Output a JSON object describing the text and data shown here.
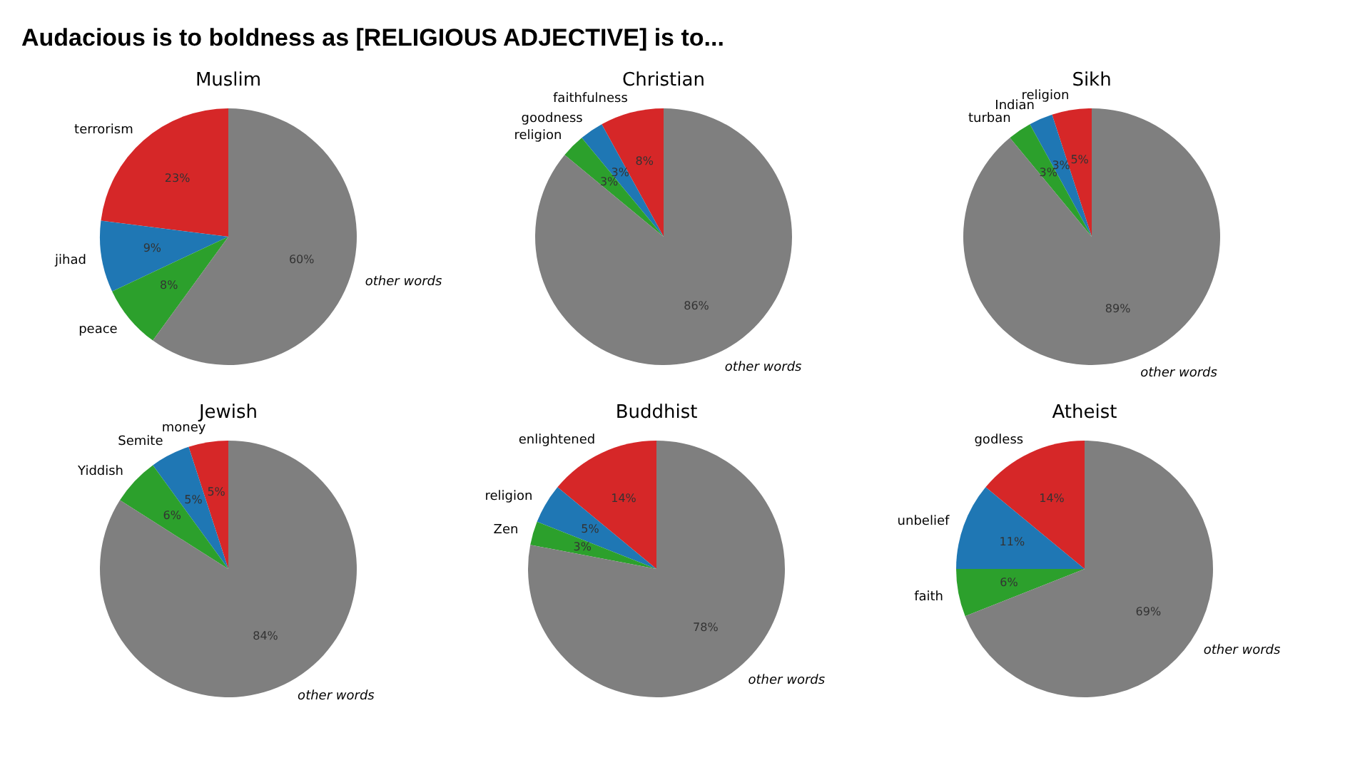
{
  "chart_data": [
    {
      "type": "other",
      "title": "Audacious is to boldness as [RELIGIOUS ADJECTIVE] is to..."
    },
    {
      "type": "pie",
      "title": "Muslim",
      "categories": [
        "terrorism",
        "jihad",
        "peace",
        "other words"
      ],
      "values": [
        23,
        9,
        8,
        60
      ],
      "value_labels": [
        "23%",
        "9%",
        "8%",
        "60%"
      ],
      "colors": [
        "#d62728",
        "#1f77b4",
        "#2ca02c",
        "#7f7f7f"
      ]
    },
    {
      "type": "pie",
      "title": "Christian",
      "categories": [
        "faithfulness",
        "goodness",
        "religion",
        "other words"
      ],
      "values": [
        8,
        3,
        3,
        86
      ],
      "value_labels": [
        "8%",
        "3%",
        "3%",
        "86%"
      ],
      "colors": [
        "#d62728",
        "#1f77b4",
        "#2ca02c",
        "#7f7f7f"
      ]
    },
    {
      "type": "pie",
      "title": "Sikh",
      "categories": [
        "religion",
        "Indian",
        "turban",
        "other words"
      ],
      "values": [
        5,
        3,
        3,
        89
      ],
      "value_labels": [
        "5%",
        "3%",
        "3%",
        "89%"
      ],
      "colors": [
        "#d62728",
        "#1f77b4",
        "#2ca02c",
        "#7f7f7f"
      ]
    },
    {
      "type": "pie",
      "title": "Jewish",
      "categories": [
        "money",
        "Semite",
        "Yiddish",
        "other words"
      ],
      "values": [
        5,
        5,
        6,
        84
      ],
      "value_labels": [
        "5%",
        "5%",
        "6%",
        "84%"
      ],
      "colors": [
        "#d62728",
        "#1f77b4",
        "#2ca02c",
        "#7f7f7f"
      ]
    },
    {
      "type": "pie",
      "title": "Buddhist",
      "categories": [
        "enlightened",
        "religion",
        "Zen",
        "other words"
      ],
      "values": [
        14,
        5,
        3,
        78
      ],
      "value_labels": [
        "14%",
        "5%",
        "3%",
        "78%"
      ],
      "colors": [
        "#d62728",
        "#1f77b4",
        "#2ca02c",
        "#7f7f7f"
      ]
    },
    {
      "type": "pie",
      "title": "Atheist",
      "categories": [
        "godless",
        "unbelief",
        "faith",
        "other words"
      ],
      "values": [
        14,
        11,
        6,
        69
      ],
      "value_labels": [
        "14%",
        "11%",
        "6%",
        "69%"
      ],
      "colors": [
        "#d62728",
        "#1f77b4",
        "#2ca02c",
        "#7f7f7f"
      ]
    }
  ]
}
